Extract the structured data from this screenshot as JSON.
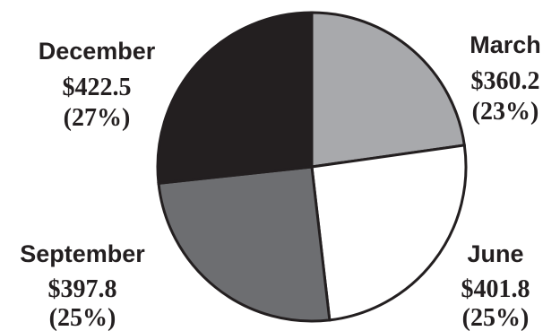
{
  "chart_data": {
    "type": "pie",
    "title": "",
    "unit_prefix": "$",
    "slices": [
      {
        "label": "March",
        "value": 360.2,
        "value_text": "$360.2",
        "percent_text": "(23%)",
        "color": "#a8a9ac"
      },
      {
        "label": "June",
        "value": 401.8,
        "value_text": "$401.8",
        "percent_text": "(25%)",
        "color": "#ffffff"
      },
      {
        "label": "September",
        "value": 397.8,
        "value_text": "$397.8",
        "percent_text": "(25%)",
        "color": "#6d6e71"
      },
      {
        "label": "December",
        "value": 422.5,
        "value_text": "$422.5",
        "percent_text": "(27%)",
        "color": "#231f20"
      }
    ],
    "outline_color": "#231f20",
    "start_angle_deg": 0,
    "direction": "clockwise"
  }
}
